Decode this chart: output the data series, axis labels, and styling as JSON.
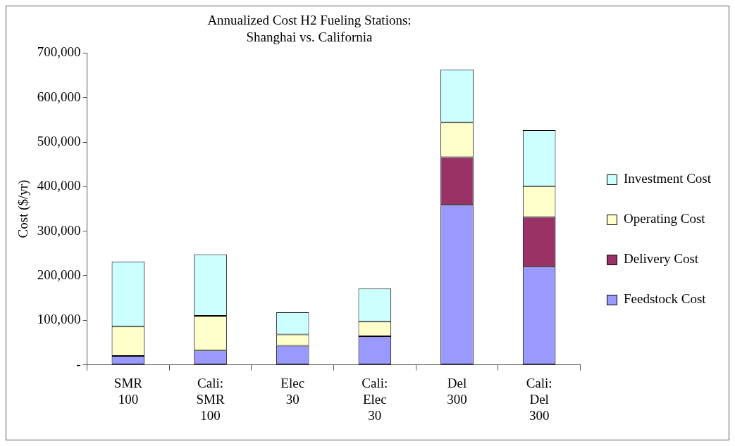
{
  "chart_data": {
    "type": "bar",
    "title": "Annualized Cost H2 Fueling Stations: Shanghai vs. California",
    "ylabel": "Cost ($/yr)",
    "categories": [
      "SMR 100",
      "Cali: SMR 100",
      "Elec 30",
      "Cali: Elec 30",
      "Del 300",
      "Cali: Del 300"
    ],
    "stacked": true,
    "series": [
      {
        "name": "Feedstock Cost",
        "color": "#9999ff",
        "values": [
          20000,
          32000,
          43000,
          64000,
          359000,
          220000
        ]
      },
      {
        "name": "Delivery Cost",
        "color": "#993366",
        "values": [
          0,
          0,
          0,
          0,
          107000,
          112000
        ]
      },
      {
        "name": "Operating Cost",
        "color": "#ffffcc",
        "values": [
          66000,
          78000,
          25000,
          33000,
          78000,
          69000
        ]
      },
      {
        "name": "Investment Cost",
        "color": "#ccffff",
        "values": [
          146000,
          138000,
          50000,
          74000,
          119000,
          126000
        ]
      }
    ],
    "ylim": [
      0,
      700000
    ],
    "yticks": [
      {
        "value": 0,
        "label": "-"
      },
      {
        "value": 100000,
        "label": "100,000"
      },
      {
        "value": 200000,
        "label": "200,000"
      },
      {
        "value": 300000,
        "label": "300,000"
      },
      {
        "value": 400000,
        "label": "400,000"
      },
      {
        "value": 500000,
        "label": "500,000"
      },
      {
        "value": 600000,
        "label": "600,000"
      },
      {
        "value": 700000,
        "label": "700,000"
      }
    ],
    "grid": false,
    "legend": "right"
  }
}
